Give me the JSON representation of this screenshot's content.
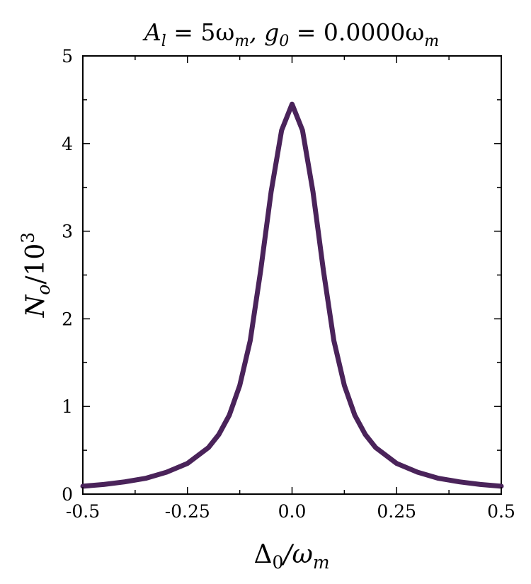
{
  "chart_data": {
    "type": "line",
    "title": "A_l = 5ω_m, g_0 = 0.0000ω_m",
    "title_parts": {
      "a": "A",
      "a_sub": "l",
      "a_eq": " = 5ω",
      "a_sub2": "m",
      "sep": ", g",
      "g_sub": "0",
      "g_eq": " = 0.0000ω",
      "g_sub2": "m"
    },
    "xlabel": "Δ_0/ω_m",
    "xlabel_parts": {
      "main": "Δ",
      "sub": "0",
      "mid": "/ω",
      "sub2": "m"
    },
    "ylabel": "N_o/10^3",
    "ylabel_parts": {
      "main": "N",
      "sub": "o",
      "mid": "/10",
      "sup": "3"
    },
    "xlim": [
      -0.5,
      0.5
    ],
    "ylim": [
      0,
      5
    ],
    "xticks": [
      -0.5,
      -0.25,
      0.0,
      0.25,
      0.5
    ],
    "xtick_labels": [
      "-0.5",
      "-0.25",
      "0.0",
      "0.25",
      "0.5"
    ],
    "yticks": [
      0,
      1,
      2,
      3,
      4,
      5
    ],
    "ytick_labels": [
      "0",
      "1",
      "2",
      "3",
      "4",
      "5"
    ],
    "grid": false,
    "legend": "none",
    "line_color": "#4a235a",
    "series": [
      {
        "name": "N_o/10^3",
        "x": [
          -0.5,
          -0.45,
          -0.4,
          -0.35,
          -0.3,
          -0.25,
          -0.2,
          -0.175,
          -0.15,
          -0.125,
          -0.1,
          -0.075,
          -0.05,
          -0.025,
          0.0,
          0.025,
          0.05,
          0.075,
          0.1,
          0.125,
          0.15,
          0.175,
          0.2,
          0.25,
          0.3,
          0.35,
          0.4,
          0.45,
          0.5
        ],
        "values": [
          0.09,
          0.11,
          0.14,
          0.18,
          0.25,
          0.35,
          0.53,
          0.68,
          0.9,
          1.24,
          1.75,
          2.55,
          3.45,
          4.15,
          4.45,
          4.15,
          3.45,
          2.55,
          1.75,
          1.24,
          0.9,
          0.68,
          0.53,
          0.35,
          0.25,
          0.18,
          0.14,
          0.11,
          0.09
        ]
      }
    ]
  }
}
